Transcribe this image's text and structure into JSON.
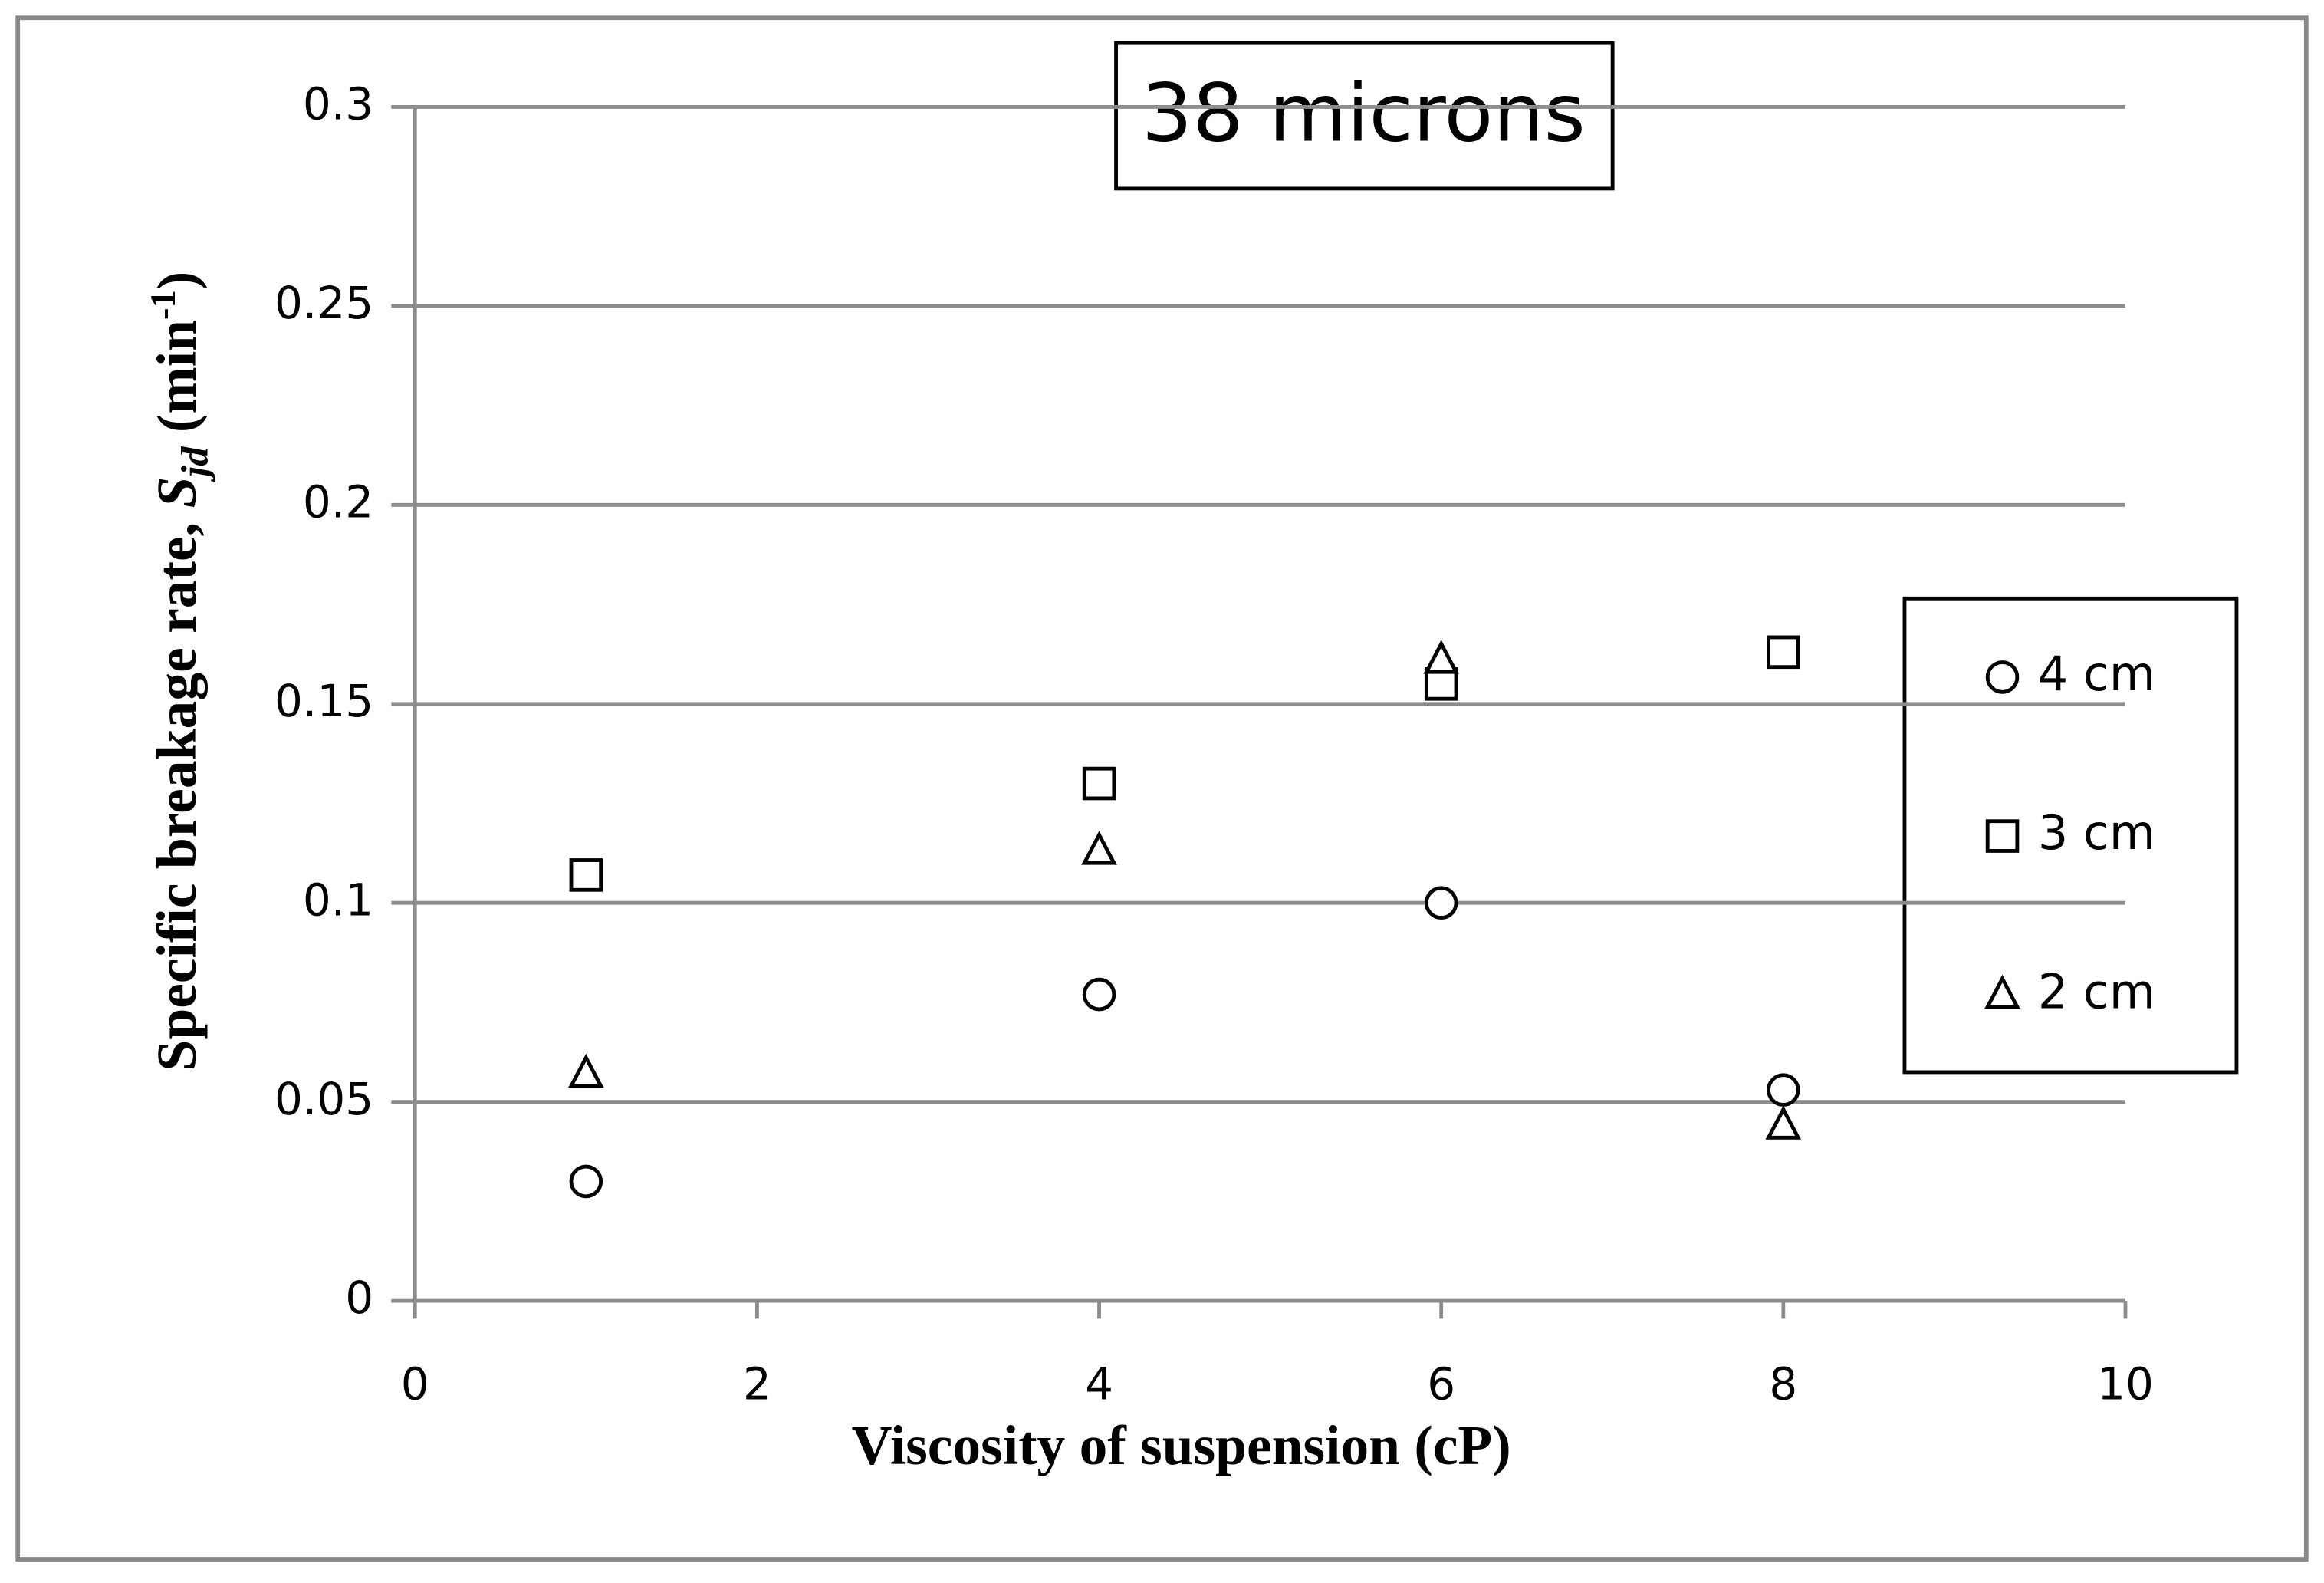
{
  "chart_data": {
    "type": "scatter",
    "title": "38 microns",
    "x_label": "Viscosity of suspension (cP)",
    "y_label": [
      "Specific breakage rate, ",
      "S",
      "jd",
      " (min",
      "-1",
      ")"
    ],
    "xlim": [
      0,
      10
    ],
    "xticks": [
      0,
      2,
      4,
      6,
      8,
      10
    ],
    "ylim": [
      0,
      0.3
    ],
    "yticks": [
      0,
      0.05,
      0.1,
      0.15,
      0.2,
      0.25,
      0.3
    ],
    "grid": true,
    "legend": "right",
    "x": [
      1,
      4,
      6,
      8
    ],
    "series": [
      {
        "name": "4 cm",
        "color": "#000000",
        "marker": "circle",
        "values": [
          0.03,
          0.077,
          0.1,
          0.053
        ]
      },
      {
        "name": "3 cm",
        "color": "#000000",
        "marker": "square",
        "values": [
          0.107,
          0.13,
          0.155,
          0.163
        ]
      },
      {
        "name": "2 cm",
        "color": "#000000",
        "marker": "triangle",
        "values": [
          0.057,
          0.113,
          0.161,
          0.044
        ]
      }
    ]
  }
}
